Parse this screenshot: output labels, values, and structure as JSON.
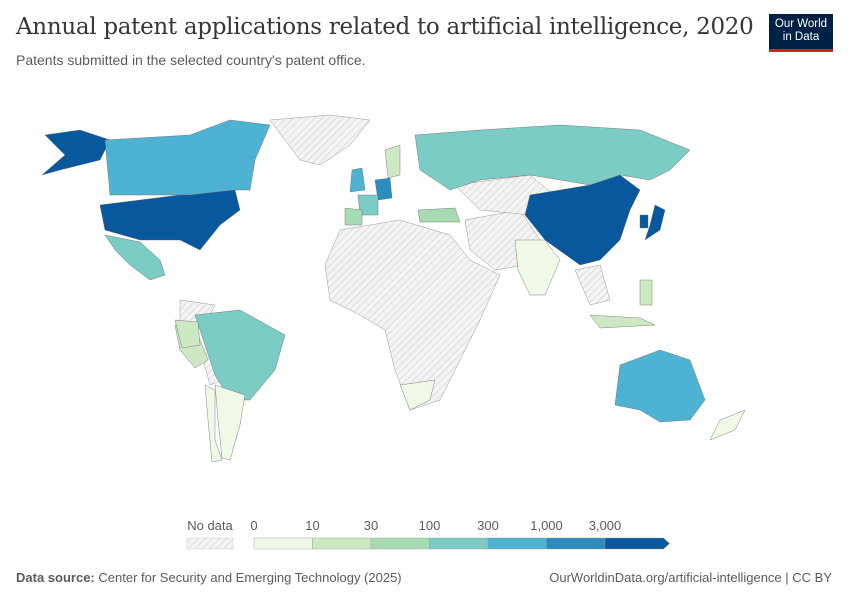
{
  "header": {
    "title": "Annual patent applications related to artificial intelligence, 2020",
    "subtitle": "Patents submitted in the selected country's patent office.",
    "logo": "Our World in Data"
  },
  "legend": {
    "no_data_label": "No data",
    "ticks": [
      "0",
      "10",
      "30",
      "100",
      "300",
      "1,000",
      "3,000"
    ],
    "bins": [
      {
        "range": "0–10",
        "color": "#f0f9e8"
      },
      {
        "range": "10–30",
        "color": "#cce9c4"
      },
      {
        "range": "30–100",
        "color": "#a8dbb4"
      },
      {
        "range": "100–300",
        "color": "#7accc4"
      },
      {
        "range": "300–1,000",
        "color": "#4eb3d3"
      },
      {
        "range": "1,000–3,000",
        "color": "#2b8cbe"
      },
      {
        "range": "3,000+",
        "color": "#08589e"
      }
    ],
    "no_data_color": "#e8e8e8"
  },
  "countries": [
    {
      "name": "United States",
      "bin": 6
    },
    {
      "name": "Canada",
      "bin": 4
    },
    {
      "name": "Mexico",
      "bin": 3
    },
    {
      "name": "Brazil",
      "bin": 3
    },
    {
      "name": "Peru",
      "bin": 1
    },
    {
      "name": "Chile",
      "bin": 0
    },
    {
      "name": "Argentina",
      "bin": 0
    },
    {
      "name": "Colombia",
      "bin": 1
    },
    {
      "name": "China",
      "bin": 6
    },
    {
      "name": "Japan",
      "bin": 6
    },
    {
      "name": "South Korea",
      "bin": 6
    },
    {
      "name": "Russia",
      "bin": 3
    },
    {
      "name": "India",
      "bin": 0
    },
    {
      "name": "Australia",
      "bin": 4
    },
    {
      "name": "New Zealand",
      "bin": 0
    },
    {
      "name": "South Africa",
      "bin": 0
    },
    {
      "name": "Germany",
      "bin": 5
    },
    {
      "name": "United Kingdom",
      "bin": 4
    },
    {
      "name": "France",
      "bin": 3
    },
    {
      "name": "Spain",
      "bin": 2
    },
    {
      "name": "Turkey",
      "bin": 2
    },
    {
      "name": "Sweden",
      "bin": 1
    },
    {
      "name": "Philippines",
      "bin": 1
    },
    {
      "name": "Indonesia",
      "bin": 1
    }
  ],
  "footer": {
    "source_label": "Data source:",
    "source": "Center for Security and Emerging Technology (2025)",
    "url": "OurWorldinData.org/artificial-intelligence | CC BY"
  }
}
